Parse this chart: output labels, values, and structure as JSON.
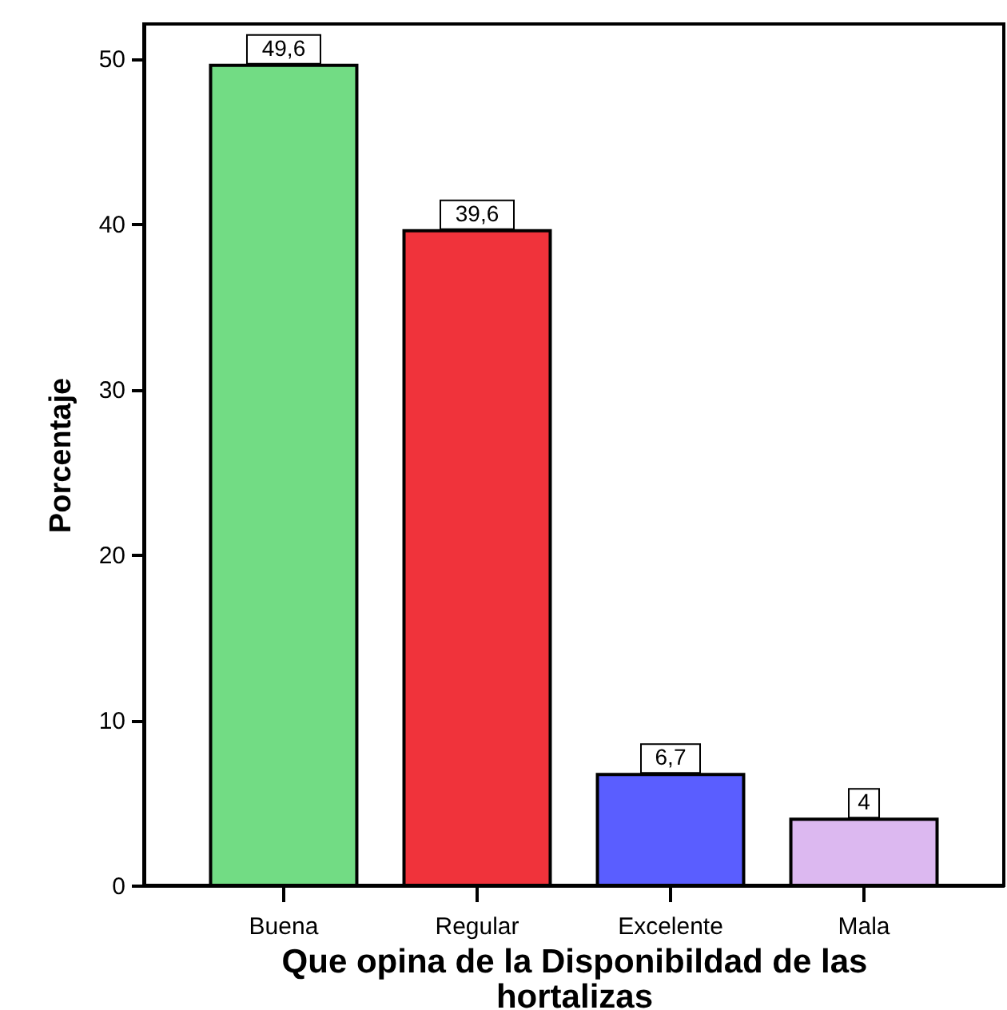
{
  "chart_data": {
    "type": "bar",
    "xlabel": "Que opina de la Disponibildad de las hortalizas",
    "ylabel": "Porcentaje",
    "categories": [
      "Buena",
      "Regular",
      "Excelente",
      "Mala"
    ],
    "values": [
      49.6,
      39.6,
      6.7,
      4
    ],
    "value_labels": [
      "49,6",
      "39,6",
      "6,7",
      "4"
    ],
    "colors": [
      "#72dc84",
      "#f0333b",
      "#5a5eff",
      "#dcb8f0"
    ],
    "ylim": [
      0,
      52.1
    ],
    "yticks": [
      0,
      10,
      20,
      30,
      40,
      50
    ],
    "grid": false
  }
}
